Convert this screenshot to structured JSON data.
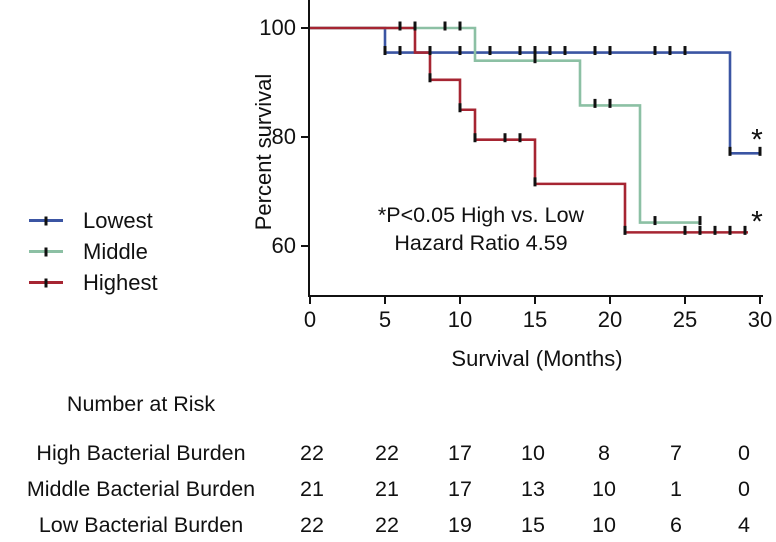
{
  "chart_data": {
    "type": "line",
    "subtype": "kaplan-meier-step",
    "title": "",
    "xlabel": "Survival (Months)",
    "ylabel": "Percent survival",
    "xlim": [
      0,
      30
    ],
    "ylim": [
      51,
      105
    ],
    "xticks": [
      0,
      5,
      10,
      15,
      20,
      25,
      30
    ],
    "yticks": [
      100,
      80,
      60
    ],
    "grid": false,
    "legend_position": "left-outside",
    "annotation": {
      "line1": "*P<0.05 High vs. Low",
      "line2": "Hazard Ratio 4.59"
    },
    "series": [
      {
        "name": "Lowest",
        "color": "#3b55a3",
        "steps": [
          [
            0,
            100
          ],
          [
            5,
            100
          ],
          [
            5,
            95.5
          ],
          [
            28,
            95.5
          ],
          [
            28,
            77
          ],
          [
            30,
            77
          ]
        ],
        "censor_ticks": [
          [
            5,
            95.5
          ],
          [
            6,
            95.5
          ],
          [
            8,
            95.5
          ],
          [
            10,
            95.5
          ],
          [
            12,
            95.5
          ],
          [
            14,
            95.5
          ],
          [
            15,
            95.5
          ],
          [
            16,
            95.5
          ],
          [
            17,
            95.5
          ],
          [
            19,
            95.5
          ],
          [
            20,
            95.5
          ],
          [
            23,
            95.5
          ],
          [
            24,
            95.5
          ],
          [
            25,
            95.5
          ],
          [
            28,
            77
          ],
          [
            30,
            77
          ]
        ]
      },
      {
        "name": "Middle",
        "color": "#8cc0a4",
        "steps": [
          [
            0,
            100
          ],
          [
            11,
            100
          ],
          [
            11,
            94
          ],
          [
            18,
            94
          ],
          [
            18,
            85.8
          ],
          [
            22,
            85.8
          ],
          [
            22,
            64.3
          ],
          [
            26,
            64.3
          ]
        ],
        "censor_ticks": [
          [
            9,
            100
          ],
          [
            10,
            100
          ],
          [
            15,
            94
          ],
          [
            19,
            85.8
          ],
          [
            20,
            85.8
          ],
          [
            23,
            64.3
          ],
          [
            26,
            64.3
          ]
        ]
      },
      {
        "name": "Highest",
        "color": "#a62532",
        "steps": [
          [
            0,
            100
          ],
          [
            7,
            100
          ],
          [
            7,
            95.5
          ],
          [
            8,
            95.5
          ],
          [
            8,
            90.5
          ],
          [
            10,
            90.5
          ],
          [
            10,
            85
          ],
          [
            11,
            85
          ],
          [
            11,
            79.5
          ],
          [
            15,
            79.5
          ],
          [
            15,
            71.4
          ],
          [
            21,
            71.4
          ],
          [
            21,
            62.5
          ],
          [
            29.2,
            62.5
          ]
        ],
        "censor_ticks": [
          [
            6,
            100
          ],
          [
            7,
            100
          ],
          [
            8,
            90.5
          ],
          [
            10,
            85
          ],
          [
            11,
            79.5
          ],
          [
            13,
            79.5
          ],
          [
            14,
            79.5
          ],
          [
            15,
            71.4
          ],
          [
            21,
            62.5
          ],
          [
            25,
            62.5
          ],
          [
            26,
            62.5
          ],
          [
            27,
            62.5
          ],
          [
            28,
            62.5
          ],
          [
            29,
            62.5
          ]
        ]
      }
    ],
    "asterisks": [
      {
        "month": 29.8,
        "pct": 81
      },
      {
        "month": 29.8,
        "pct": 66
      }
    ]
  },
  "legend": {
    "items": [
      {
        "label": "Lowest",
        "color": "#3b55a3"
      },
      {
        "label": "Middle",
        "color": "#8cc0a4"
      },
      {
        "label": "Highest",
        "color": "#a62532"
      }
    ]
  },
  "risk_table": {
    "title": "Number at Risk",
    "columns_months": [
      0,
      5,
      10,
      15,
      20,
      25,
      30
    ],
    "rows": [
      {
        "label": "High Bacterial Burden",
        "values": [
          22,
          22,
          17,
          10,
          8,
          7,
          0
        ]
      },
      {
        "label": "Middle Bacterial Burden",
        "values": [
          21,
          21,
          17,
          13,
          10,
          1,
          0
        ]
      },
      {
        "label": "Low Bacterial Burden",
        "values": [
          22,
          22,
          19,
          15,
          10,
          6,
          4
        ]
      }
    ]
  }
}
